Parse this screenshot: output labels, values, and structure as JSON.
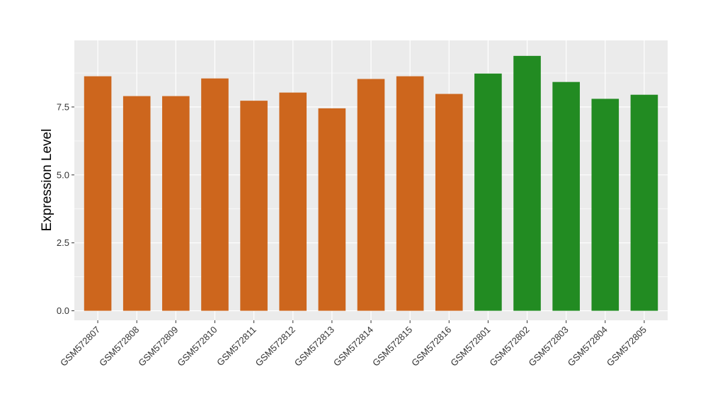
{
  "chart_data": {
    "type": "bar",
    "title": "",
    "xlabel": "",
    "ylabel": "Expression Level",
    "ylim": [
      -0.35,
      9.95
    ],
    "y_ticks": [
      0.0,
      2.5,
      5.0,
      7.5
    ],
    "y_tick_labels": [
      "0.0",
      "2.5",
      "5.0",
      "7.5"
    ],
    "grid": true,
    "legend": "none",
    "categories": [
      "GSM572807",
      "GSM572808",
      "GSM572809",
      "GSM572810",
      "GSM572811",
      "GSM572812",
      "GSM572813",
      "GSM572814",
      "GSM572815",
      "GSM572816",
      "GSM572801",
      "GSM572802",
      "GSM572803",
      "GSM572804",
      "GSM572805"
    ],
    "values": [
      8.63,
      7.9,
      7.9,
      8.55,
      7.73,
      8.03,
      7.45,
      8.53,
      8.63,
      7.98,
      8.73,
      9.38,
      8.42,
      7.8,
      7.95
    ],
    "bar_colors": [
      "#CD661D",
      "#CD661D",
      "#CD661D",
      "#CD661D",
      "#CD661D",
      "#CD661D",
      "#CD661D",
      "#CD661D",
      "#CD661D",
      "#CD661D",
      "#228B22",
      "#228B22",
      "#228B22",
      "#228B22",
      "#228B22"
    ],
    "panel_background": "#EBEBEB",
    "grid_color": "#FFFFFF"
  }
}
